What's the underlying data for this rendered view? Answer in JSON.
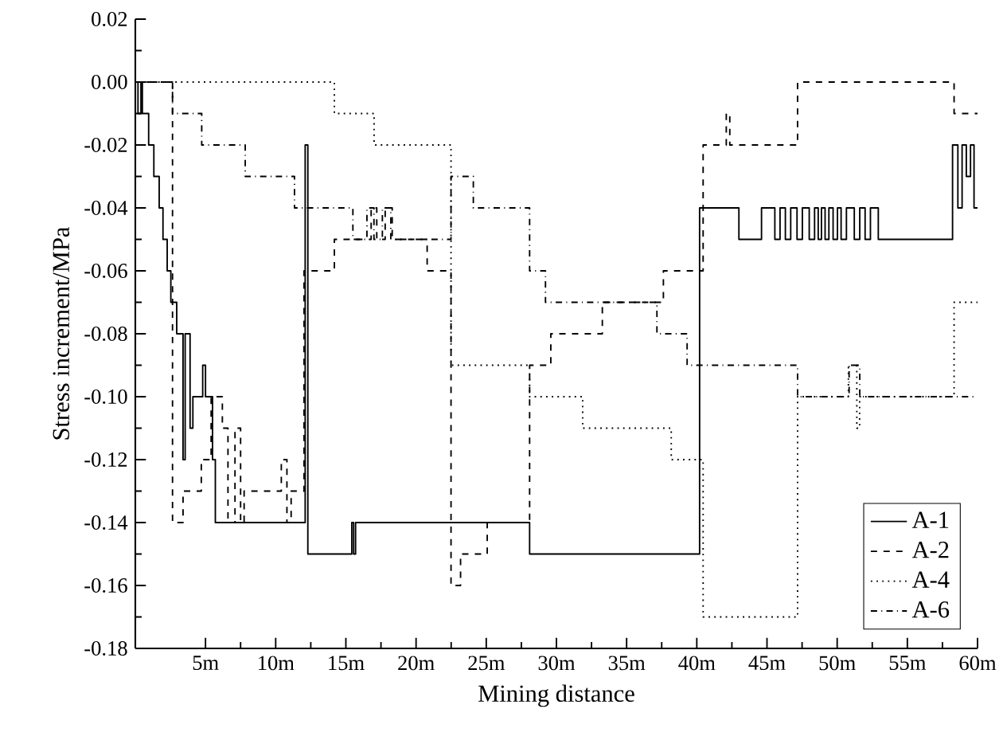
{
  "chart_data": {
    "type": "step",
    "xlabel": "Mining distance",
    "ylabel": "Stress increment/MPa",
    "xlim": [
      0,
      60
    ],
    "ylim": [
      -0.18,
      0.02
    ],
    "xticks": [
      {
        "value": 5,
        "label": "5m"
      },
      {
        "value": 10,
        "label": "10m"
      },
      {
        "value": 15,
        "label": "15m"
      },
      {
        "value": 20,
        "label": "20m"
      },
      {
        "value": 25,
        "label": "25m"
      },
      {
        "value": 30,
        "label": "30m"
      },
      {
        "value": 35,
        "label": "35m"
      },
      {
        "value": 40,
        "label": "40m"
      },
      {
        "value": 45,
        "label": "45m"
      },
      {
        "value": 50,
        "label": "50m"
      },
      {
        "value": 55,
        "label": "55m"
      },
      {
        "value": 60,
        "label": "60m"
      }
    ],
    "yticks": [
      {
        "value": -0.18,
        "label": "-0.18"
      },
      {
        "value": -0.16,
        "label": "-0.16"
      },
      {
        "value": -0.14,
        "label": "-0.14"
      },
      {
        "value": -0.12,
        "label": "-0.12"
      },
      {
        "value": -0.1,
        "label": "-0.10"
      },
      {
        "value": -0.08,
        "label": "-0.08"
      },
      {
        "value": -0.06,
        "label": "-0.06"
      },
      {
        "value": -0.04,
        "label": "-0.04"
      },
      {
        "value": -0.02,
        "label": "-0.02"
      },
      {
        "value": 0,
        "label": "0.00"
      },
      {
        "value": 0.02,
        "label": "0.02"
      }
    ],
    "grid": false,
    "legend": "bottom right",
    "marker": "none",
    "series": [
      {
        "name": "A-1",
        "color": "#000000",
        "line_style": "solid",
        "x": [
          0,
          0.19,
          0.4,
          0.5,
          0.95,
          1.32,
          1.7,
          1.97,
          2.27,
          2.53,
          2.95,
          3.4,
          3.55,
          3.9,
          4.1,
          4.8,
          5.0,
          5.5,
          5.7,
          12.1,
          12.29,
          15.42,
          15.55,
          15.69,
          28.09,
          40.2,
          43.0,
          44.61,
          45.56,
          45.93,
          46.31,
          46.69,
          47.14,
          47.52,
          48.01,
          48.39,
          48.65,
          48.88,
          49.14,
          49.41,
          49.71,
          50.02,
          50.28,
          50.66,
          51.22,
          51.61,
          51.99,
          52.37,
          52.93,
          58.22,
          58.6,
          58.9,
          59.2,
          59.5,
          59.75,
          60
        ],
        "values": [
          0,
          -0.01,
          0,
          -0.01,
          -0.02,
          -0.03,
          -0.04,
          -0.05,
          -0.06,
          -0.07,
          -0.08,
          -0.12,
          -0.08,
          -0.11,
          -0.1,
          -0.09,
          -0.1,
          -0.12,
          -0.14,
          -0.02,
          -0.15,
          -0.14,
          -0.15,
          -0.14,
          -0.15,
          -0.04,
          -0.05,
          -0.04,
          -0.05,
          -0.04,
          -0.05,
          -0.04,
          -0.05,
          -0.04,
          -0.05,
          -0.04,
          -0.05,
          -0.04,
          -0.05,
          -0.04,
          -0.05,
          -0.04,
          -0.05,
          -0.04,
          -0.05,
          -0.04,
          -0.05,
          -0.04,
          -0.05,
          -0.02,
          -0.04,
          -0.02,
          -0.03,
          -0.02,
          -0.04,
          -0.04
        ]
      },
      {
        "name": "A-2",
        "color": "#000000",
        "line_style": "dashed",
        "x": [
          0,
          2.65,
          2.95,
          3.4,
          4.7,
          5.4,
          6.2,
          6.6,
          7.1,
          7.5,
          7.75,
          10.4,
          10.8,
          11.1,
          12.02,
          14.18,
          16.8,
          17.2,
          17.8,
          18.3,
          20.79,
          22.49,
          23.17,
          25.07,
          28.09,
          29.6,
          33.27,
          37.62,
          40.45,
          42.1,
          42.35,
          47.18,
          58.33,
          60
        ],
        "values": [
          0,
          -0.14,
          -0.14,
          -0.13,
          -0.12,
          -0.1,
          -0.11,
          -0.14,
          -0.11,
          -0.14,
          -0.13,
          -0.12,
          -0.14,
          -0.13,
          -0.06,
          -0.05,
          -0.04,
          -0.05,
          -0.04,
          -0.05,
          -0.06,
          -0.16,
          -0.15,
          -0.14,
          -0.09,
          -0.08,
          -0.07,
          -0.06,
          -0.02,
          -0.01,
          -0.02,
          0,
          -0.01,
          -0.01
        ]
      },
      {
        "name": "A-4",
        "color": "#000000",
        "line_style": "dotted",
        "x": [
          0,
          14.18,
          17.01,
          22.49,
          28.09,
          31.87,
          38.18,
          40.45,
          47.18,
          50.8,
          51.4,
          51.6,
          58.33,
          60
        ],
        "values": [
          0,
          -0.01,
          -0.02,
          -0.09,
          -0.1,
          -0.11,
          -0.12,
          -0.17,
          -0.1,
          -0.09,
          -0.11,
          -0.1,
          -0.07,
          -0.07
        ]
      },
      {
        "name": "A-6",
        "color": "#000000",
        "line_style": "dashdot",
        "x": [
          0,
          2.65,
          4.73,
          7.83,
          11.34,
          15.5,
          16.5,
          17.0,
          17.6,
          18.2,
          22.49,
          24.08,
          28.09,
          29.22,
          37.16,
          39.31,
          47.18,
          50.85,
          51.61,
          60
        ],
        "values": [
          0,
          -0.01,
          -0.02,
          -0.03,
          -0.04,
          -0.05,
          -0.04,
          -0.05,
          -0.04,
          -0.05,
          -0.03,
          -0.04,
          -0.06,
          -0.07,
          -0.08,
          -0.09,
          -0.1,
          -0.09,
          -0.1,
          -0.1
        ]
      }
    ]
  }
}
